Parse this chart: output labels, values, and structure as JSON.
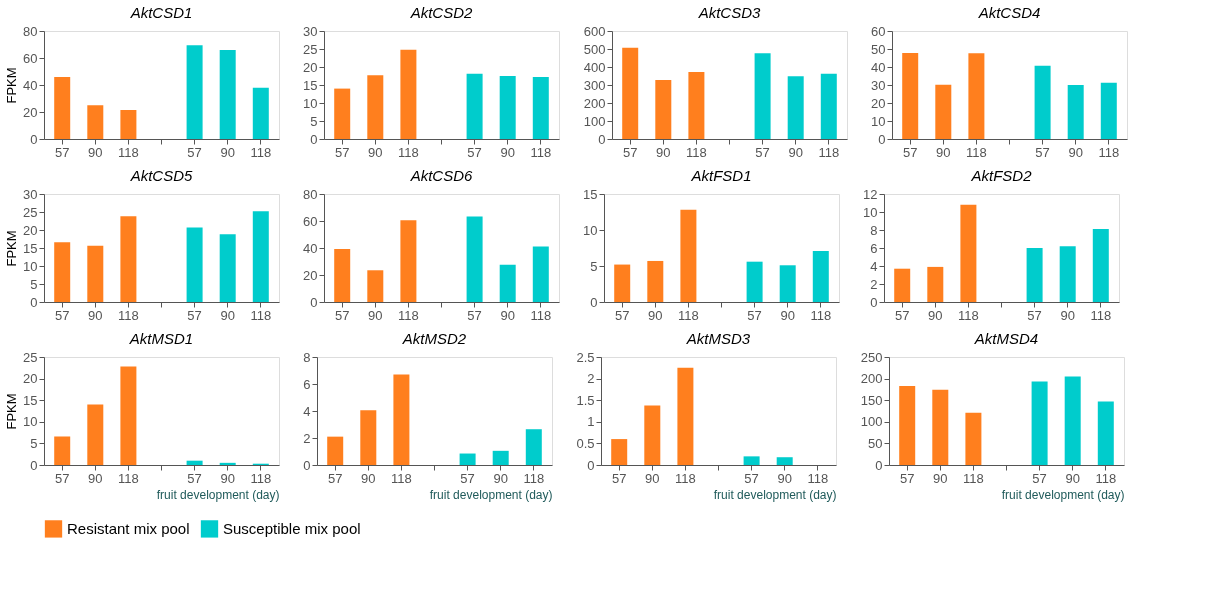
{
  "chart_data": [
    {
      "type": "bar",
      "title": "AktCSD1",
      "ylabel": "FPKM",
      "categories": [
        "57",
        "90",
        "118",
        null,
        "57",
        "90",
        "118"
      ],
      "ylim": [
        0,
        80
      ],
      "yticks": [
        0,
        20,
        40,
        60,
        80
      ],
      "legend": "bottom",
      "series": [
        {
          "name": "Resistant mix pool",
          "color": "#ff7f1e",
          "values": [
            46,
            25,
            21.5,
            null,
            null,
            null,
            null
          ]
        },
        {
          "name": "Susceptible mix pool",
          "color": "#00cccc",
          "values": [
            null,
            null,
            null,
            null,
            69.5,
            66,
            38
          ]
        }
      ]
    },
    {
      "type": "bar",
      "title": "AktCSD2",
      "categories": [
        "57",
        "90",
        "118",
        null,
        "57",
        "90",
        "118"
      ],
      "ylim": [
        0,
        30
      ],
      "yticks": [
        0,
        5,
        10,
        15,
        20,
        25,
        30
      ],
      "legend": "bottom",
      "series": [
        {
          "name": "Resistant mix pool",
          "color": "#ff7f1e",
          "values": [
            14,
            17.7,
            24.8,
            null,
            null,
            null,
            null
          ]
        },
        {
          "name": "Susceptible mix pool",
          "color": "#00cccc",
          "values": [
            null,
            null,
            null,
            null,
            18.1,
            17.5,
            17.2
          ]
        }
      ]
    },
    {
      "type": "bar",
      "title": "AktCSD3",
      "categories": [
        "57",
        "90",
        "118",
        null,
        "57",
        "90",
        "118"
      ],
      "ylim": [
        0,
        600
      ],
      "yticks": [
        0,
        100,
        200,
        300,
        400,
        500,
        600
      ],
      "legend": "bottom",
      "series": [
        {
          "name": "Resistant mix pool",
          "color": "#ff7f1e",
          "values": [
            507,
            328,
            372,
            null,
            null,
            null,
            null
          ]
        },
        {
          "name": "Susceptible mix pool",
          "color": "#00cccc",
          "values": [
            null,
            null,
            null,
            null,
            477,
            348,
            362
          ]
        }
      ]
    },
    {
      "type": "bar",
      "title": "AktCSD4",
      "categories": [
        "57",
        "90",
        "118",
        null,
        "57",
        "90",
        "118"
      ],
      "ylim": [
        0,
        60
      ],
      "yticks": [
        0,
        10,
        20,
        30,
        40,
        50,
        60
      ],
      "legend": "bottom",
      "series": [
        {
          "name": "Resistant mix pool",
          "color": "#ff7f1e",
          "values": [
            47.8,
            30.2,
            47.7,
            null,
            null,
            null,
            null
          ]
        },
        {
          "name": "Susceptible mix pool",
          "color": "#00cccc",
          "values": [
            null,
            null,
            null,
            null,
            40.7,
            30,
            31.3
          ]
        }
      ]
    },
    {
      "type": "bar",
      "title": "AktCSD5",
      "ylabel": "FPKM",
      "categories": [
        "57",
        "90",
        "118",
        null,
        "57",
        "90",
        "118"
      ],
      "ylim": [
        0,
        30
      ],
      "yticks": [
        0,
        5,
        10,
        15,
        20,
        25,
        30
      ],
      "legend": "bottom",
      "series": [
        {
          "name": "Resistant mix pool",
          "color": "#ff7f1e",
          "values": [
            16.6,
            15.6,
            23.8,
            null,
            null,
            null,
            null
          ]
        },
        {
          "name": "Susceptible mix pool",
          "color": "#00cccc",
          "values": [
            null,
            null,
            null,
            null,
            20.7,
            18.8,
            25.2
          ]
        }
      ]
    },
    {
      "type": "bar",
      "title": "AktCSD6",
      "categories": [
        "57",
        "90",
        "118",
        null,
        "57",
        "90",
        "118"
      ],
      "ylim": [
        0,
        80
      ],
      "yticks": [
        0,
        20,
        40,
        60,
        80
      ],
      "legend": "bottom",
      "series": [
        {
          "name": "Resistant mix pool",
          "color": "#ff7f1e",
          "values": [
            39.3,
            23.5,
            60.5,
            null,
            null,
            null,
            null
          ]
        },
        {
          "name": "Susceptible mix pool",
          "color": "#00cccc",
          "values": [
            null,
            null,
            null,
            null,
            63.3,
            27.6,
            41.2
          ]
        }
      ]
    },
    {
      "type": "bar",
      "title": "AktFSD1",
      "categories": [
        "57",
        "90",
        "118",
        null,
        "57",
        "90",
        "118"
      ],
      "ylim": [
        0,
        15
      ],
      "yticks": [
        0,
        5,
        10,
        15
      ],
      "legend": "bottom",
      "series": [
        {
          "name": "Resistant mix pool",
          "color": "#ff7f1e",
          "values": [
            5.2,
            5.7,
            12.8,
            null,
            null,
            null,
            null
          ]
        },
        {
          "name": "Susceptible mix pool",
          "color": "#00cccc",
          "values": [
            null,
            null,
            null,
            null,
            5.6,
            5.1,
            7.1
          ]
        }
      ]
    },
    {
      "type": "bar",
      "title": "AktFSD2",
      "categories": [
        "57",
        "90",
        "118",
        null,
        "57",
        "90",
        "118"
      ],
      "ylim": [
        0,
        12
      ],
      "yticks": [
        0,
        2,
        4,
        6,
        8,
        10,
        12
      ],
      "legend": "bottom",
      "series": [
        {
          "name": "Resistant mix pool",
          "color": "#ff7f1e",
          "values": [
            3.7,
            3.9,
            10.8,
            null,
            null,
            null,
            null
          ]
        },
        {
          "name": "Susceptible mix pool",
          "color": "#00cccc",
          "values": [
            null,
            null,
            null,
            null,
            6,
            6.2,
            8.1
          ]
        }
      ]
    },
    {
      "type": "bar",
      "title": "AktMSD1",
      "ylabel": "FPKM",
      "xlabel": "fruit development (day)",
      "categories": [
        "57",
        "90",
        "118",
        null,
        "57",
        "90",
        "118"
      ],
      "ylim": [
        0,
        25
      ],
      "yticks": [
        0,
        5,
        10,
        15,
        20,
        25
      ],
      "legend": "bottom",
      "series": [
        {
          "name": "Resistant mix pool",
          "color": "#ff7f1e",
          "values": [
            6.6,
            14,
            22.8,
            null,
            null,
            null,
            null
          ]
        },
        {
          "name": "Susceptible mix pool",
          "color": "#00cccc",
          "values": [
            null,
            null,
            null,
            null,
            1.0,
            0.5,
            0.3
          ]
        }
      ]
    },
    {
      "type": "bar",
      "title": "AktMSD2",
      "xlabel": "fruit development (day)",
      "categories": [
        "57",
        "90",
        "118",
        null,
        "57",
        "90",
        "118"
      ],
      "ylim": [
        0,
        8
      ],
      "yticks": [
        0,
        2,
        4,
        6,
        8
      ],
      "legend": "bottom",
      "series": [
        {
          "name": "Resistant mix pool",
          "color": "#ff7f1e",
          "values": [
            2.1,
            4.05,
            6.7,
            null,
            null,
            null,
            null
          ]
        },
        {
          "name": "Susceptible mix pool",
          "color": "#00cccc",
          "values": [
            null,
            null,
            null,
            null,
            0.85,
            1.05,
            2.65
          ]
        }
      ]
    },
    {
      "type": "bar",
      "title": "AktMSD3",
      "xlabel": "fruit development (day)",
      "categories": [
        "57",
        "90",
        "118",
        null,
        "57",
        "90",
        "118"
      ],
      "ylim": [
        0,
        2.5
      ],
      "yticks": [
        0,
        0.5,
        1,
        1.5,
        2,
        2.5
      ],
      "legend": "bottom",
      "series": [
        {
          "name": "Resistant mix pool",
          "color": "#ff7f1e",
          "values": [
            0.6,
            1.38,
            2.25,
            null,
            null,
            null,
            null
          ]
        },
        {
          "name": "Susceptible mix pool",
          "color": "#00cccc",
          "values": [
            null,
            null,
            null,
            null,
            0.2,
            0.18,
            0
          ]
        }
      ]
    },
    {
      "type": "bar",
      "title": "AktMSD4",
      "xlabel": "fruit development (day)",
      "categories": [
        "57",
        "90",
        "118",
        null,
        "57",
        "90",
        "118"
      ],
      "ylim": [
        0,
        250
      ],
      "yticks": [
        0,
        50,
        100,
        150,
        200,
        250
      ],
      "legend": "bottom",
      "series": [
        {
          "name": "Resistant mix pool",
          "color": "#ff7f1e",
          "values": [
            183,
            174,
            121,
            null,
            null,
            null,
            null
          ]
        },
        {
          "name": "Susceptible mix pool",
          "color": "#00cccc",
          "values": [
            null,
            null,
            null,
            null,
            193,
            205,
            147
          ]
        }
      ]
    }
  ]
}
